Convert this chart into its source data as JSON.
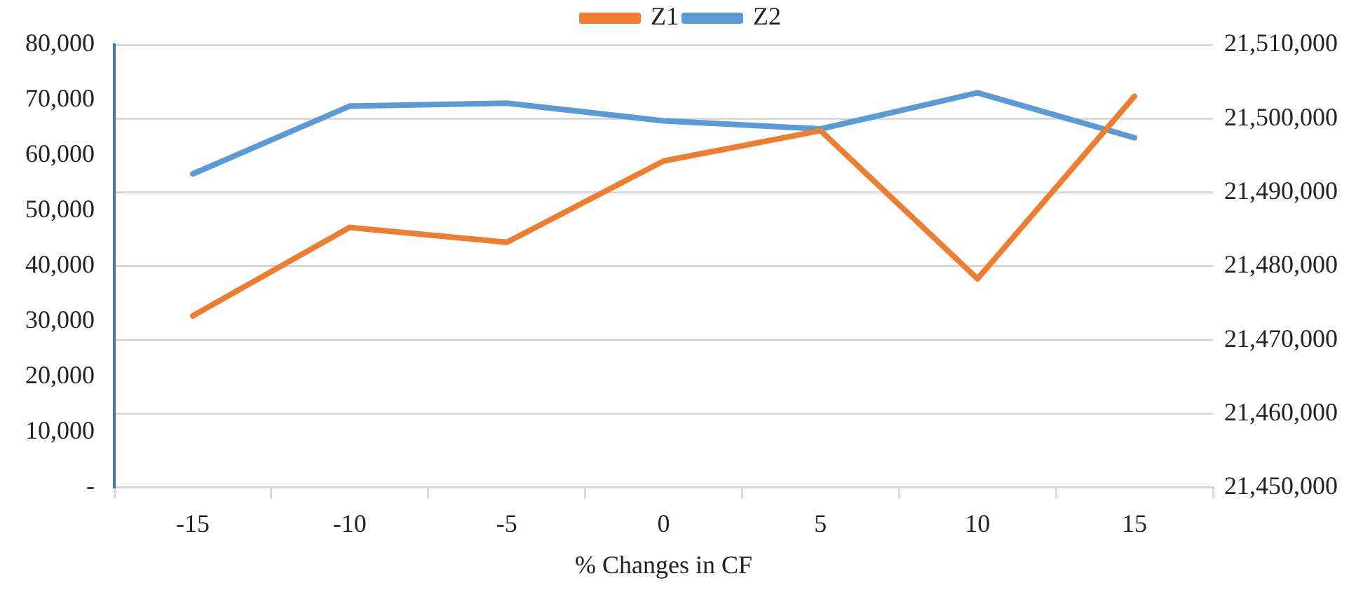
{
  "chart_data": {
    "type": "line",
    "xlabel": "% Changes in CF",
    "categories": [
      "-15",
      "-10",
      "-5",
      "0",
      "5",
      "10",
      "15"
    ],
    "series": [
      {
        "name": "Z1",
        "color": "#ed7d31",
        "values": [
          31000,
          47000,
          44300,
          59000,
          64500,
          37700,
          70700
        ]
      },
      {
        "name": "Z2",
        "color": "#5b9bd5",
        "axis": "y2",
        "values": [
          21492500,
          21501700,
          21502100,
          21499700,
          21498600,
          21503500,
          21497400
        ]
      }
    ],
    "ylim": [
      0,
      80000
    ],
    "yticks": [
      {
        "value": 0,
        "label": "-"
      },
      {
        "value": 10000,
        "label": "10,000"
      },
      {
        "value": 20000,
        "label": "20,000"
      },
      {
        "value": 30000,
        "label": "30,000"
      },
      {
        "value": 40000,
        "label": "40,000"
      },
      {
        "value": 50000,
        "label": "50,000"
      },
      {
        "value": 60000,
        "label": "60,000"
      },
      {
        "value": 70000,
        "label": "70,000"
      },
      {
        "value": 80000,
        "label": "80,000"
      }
    ],
    "y2lim": [
      21450000,
      21510000
    ],
    "y2ticks": [
      {
        "value": 21450000,
        "label": "21,450,000"
      },
      {
        "value": 21460000,
        "label": "21,460,000"
      },
      {
        "value": 21470000,
        "label": "21,470,000"
      },
      {
        "value": 21480000,
        "label": "21,480,000"
      },
      {
        "value": 21490000,
        "label": "21,490,000"
      },
      {
        "value": 21500000,
        "label": "21,500,000"
      },
      {
        "value": 21510000,
        "label": "21,510,000"
      }
    ],
    "grid": "y2",
    "legend": "top",
    "marker": "none",
    "line_style": "solid"
  }
}
